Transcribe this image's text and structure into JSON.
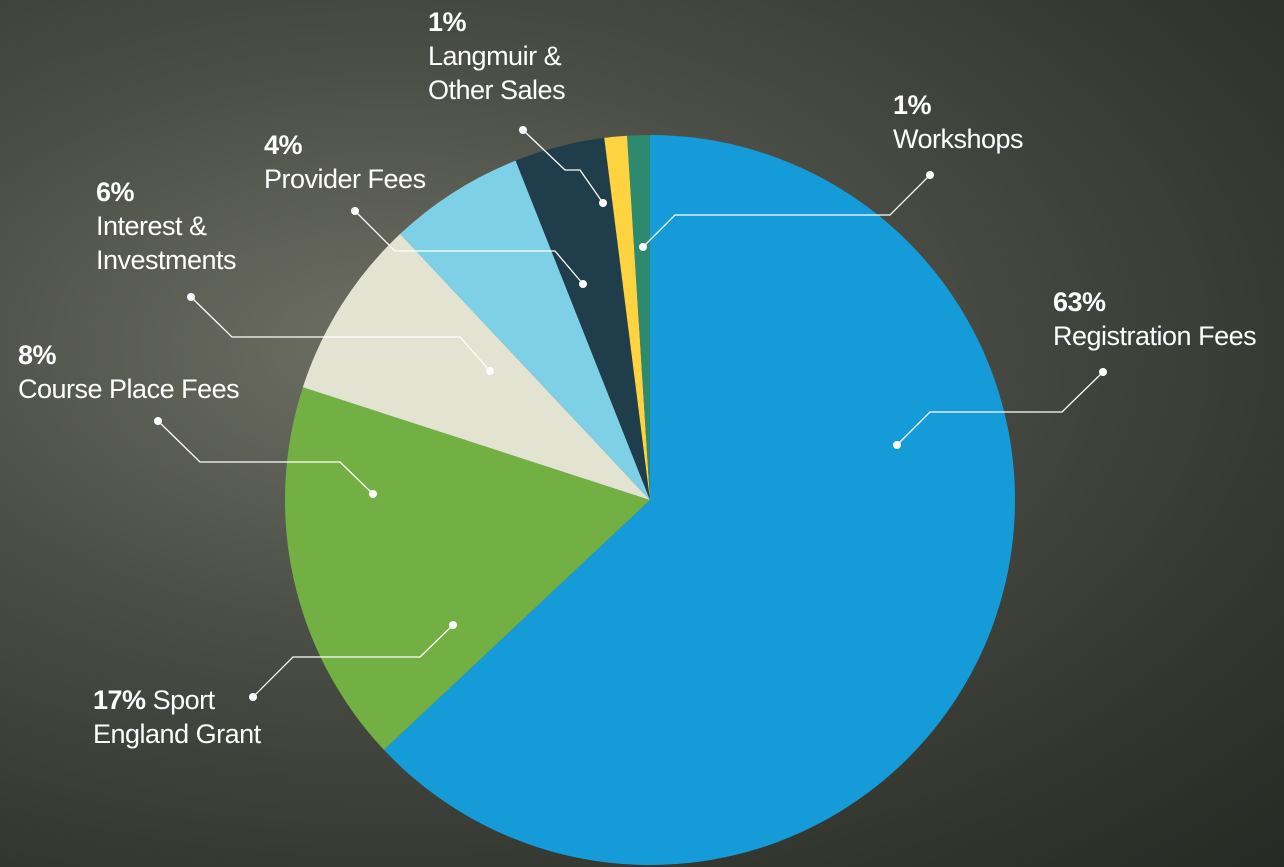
{
  "chart_data": {
    "type": "pie",
    "categories": [
      "Registration Fees",
      "Sport England Grant",
      "Course Place Fees",
      "Interest & Investments",
      "Provider Fees",
      "Langmuir & Other Sales",
      "Workshops"
    ],
    "values": [
      63,
      17,
      8,
      6,
      4,
      1,
      1
    ],
    "value_labels": [
      "63%",
      "17%",
      "8%",
      "6%",
      "4%",
      "1%",
      "1%"
    ],
    "colors": [
      "#159bd7",
      "#72b043",
      "#e3e3d1",
      "#7dd0e6",
      "#1f3d4a",
      "#fdd33f",
      "#2e8a6e"
    ]
  }
}
